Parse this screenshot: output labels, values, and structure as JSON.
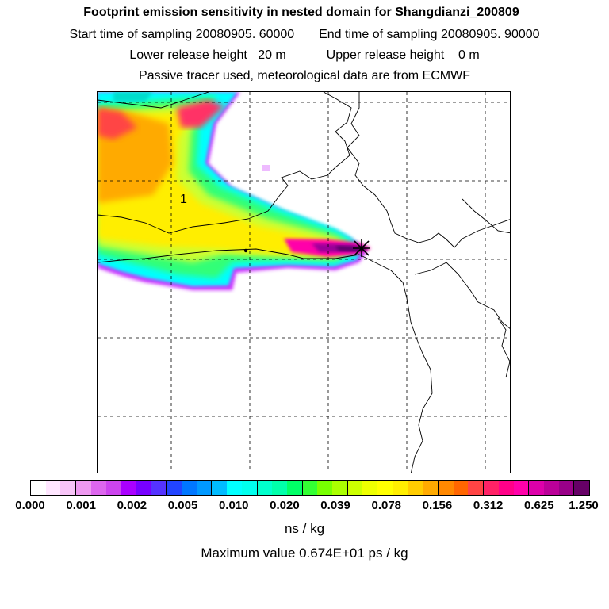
{
  "header": {
    "title": "Footprint emission sensitivity in nested domain for Shangdianzi_200809",
    "start_label": "Start time of sampling 20080905. 60000",
    "end_label": "End time of sampling 20080905. 90000",
    "lower_label": "Lower release height   20 m",
    "upper_label": "Upper release height    0 m",
    "tracer_note": "Passive tracer used, meteorological data are from ECMWF"
  },
  "map": {
    "contour_label": "1",
    "release_marker": "asterisk-cross",
    "colors": {
      "cyan": "#00ffff",
      "green": "#33ff77",
      "yellow_green": "#ccff33",
      "yellow": "#ffff00",
      "orange": "#ffaa00",
      "red": "#ff3333",
      "magenta": "#ff00cc",
      "purple": "#9900cc",
      "dark_purple": "#550066",
      "coast": "#000000",
      "grid": "#000000"
    }
  },
  "legend": {
    "colors": [
      "#ffffff",
      "#ffe6ff",
      "#f7c4f7",
      "#ee99f0",
      "#dd66ee",
      "#cc44ee",
      "#aa00ff",
      "#7700ff",
      "#5533ff",
      "#2244ff",
      "#0077ff",
      "#0099ff",
      "#00bbff",
      "#00ffff",
      "#00ffee",
      "#00ffcc",
      "#00ffaa",
      "#00ff66",
      "#33ff33",
      "#77ff00",
      "#aaff00",
      "#ccff00",
      "#eeff00",
      "#ffff00",
      "#ffee00",
      "#ffcc00",
      "#ffaa00",
      "#ff8800",
      "#ff6600",
      "#ff4444",
      "#ff2266",
      "#ff0088",
      "#ff00aa",
      "#dd00aa",
      "#bb0099",
      "#990088",
      "#660066"
    ],
    "ticks": [
      "0.000",
      "0.001",
      "0.002",
      "0.005",
      "0.010",
      "0.020",
      "0.039",
      "0.078",
      "0.156",
      "0.312",
      "0.625",
      "1.250"
    ],
    "unit": "ns / kg",
    "max_value": "Maximum value  0.674E+01 ps / kg"
  }
}
